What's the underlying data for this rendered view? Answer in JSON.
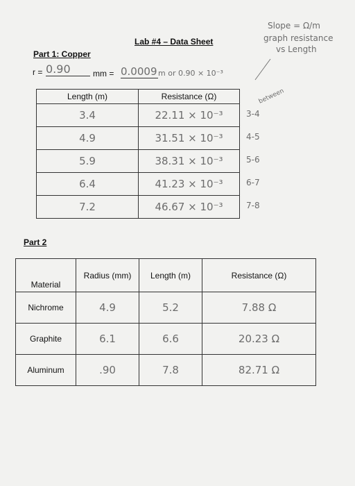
{
  "header": {
    "title": "Lab #4 – Data Sheet",
    "notes": [
      "Slope = Ω/m",
      "graph resistance",
      "vs Length"
    ]
  },
  "part1": {
    "heading": "Part 1: Copper",
    "radius_label": "r =",
    "radius_value": "0.90",
    "mm_label": "mm =",
    "meters_value": "0.0009",
    "meters_note": "m or 0.90 × 10⁻³",
    "table": {
      "headers": [
        "Length (m)",
        "Resistance (Ω)"
      ],
      "rows": [
        [
          "3.4",
          "22.11 × 10⁻³"
        ],
        [
          "4.9",
          "31.51 × 10⁻³"
        ],
        [
          "5.9",
          "38.31 × 10⁻³"
        ],
        [
          "6.4",
          "41.23 × 10⁻³"
        ],
        [
          "7.2",
          "46.67 × 10⁻³"
        ]
      ]
    },
    "side_label": "between",
    "side_notes": [
      "3-4",
      "4-5",
      "5-6",
      "6-7",
      "7-8"
    ]
  },
  "part2": {
    "heading": "Part 2",
    "table": {
      "headers": [
        "Material",
        "Radius (mm)",
        "Length (m)",
        "Resistance (Ω)"
      ],
      "rows": [
        [
          "Nichrome",
          "4.9",
          "5.2",
          "7.88 Ω"
        ],
        [
          "Graphite",
          "6.1",
          "6.6",
          "20.23 Ω"
        ],
        [
          "Aluminum",
          ".90",
          "7.8",
          "82.71 Ω"
        ]
      ]
    }
  }
}
